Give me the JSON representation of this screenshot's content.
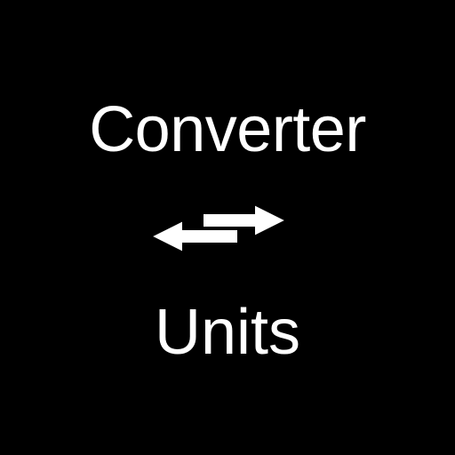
{
  "logo": {
    "line_top": "Converter",
    "line_bottom": "Units",
    "icon": "swap-arrows-icon",
    "colors": {
      "background": "#000000",
      "foreground": "#ffffff"
    }
  }
}
